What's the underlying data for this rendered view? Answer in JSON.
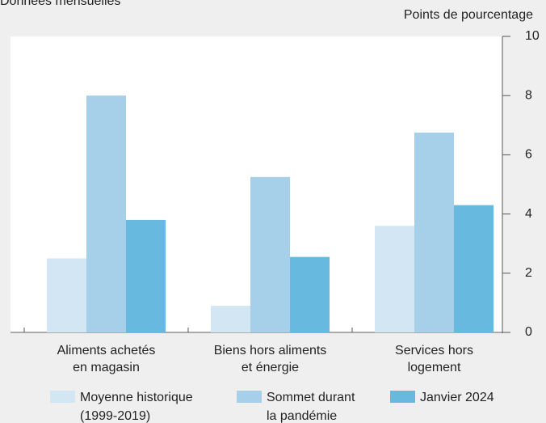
{
  "chart_data": {
    "type": "bar",
    "subtitle": "Données mensuelles",
    "y_axis_label": "Points de pourcentage",
    "categories": [
      [
        "Aliments achetés",
        "en magasin"
      ],
      [
        "Biens hors aliments",
        "et énergie"
      ],
      [
        "Services hors",
        "logement"
      ]
    ],
    "series": [
      {
        "name": [
          "Moyenne historique",
          "(1999-2019)"
        ],
        "color": "#d3e6f4",
        "values": [
          2.5,
          0.9,
          3.6
        ]
      },
      {
        "name": [
          "Sommet durant",
          "la pandémie"
        ],
        "color": "#a6cfe9",
        "values": [
          8.0,
          5.25,
          6.75
        ]
      },
      {
        "name": [
          "Janvier 2024"
        ],
        "color": "#67b9e0",
        "values": [
          3.8,
          2.55,
          4.3
        ]
      }
    ],
    "ylim": [
      0,
      10
    ],
    "yticks": [
      0,
      2,
      4,
      6,
      8,
      10
    ],
    "y_axis_side": "right",
    "grid": false
  }
}
